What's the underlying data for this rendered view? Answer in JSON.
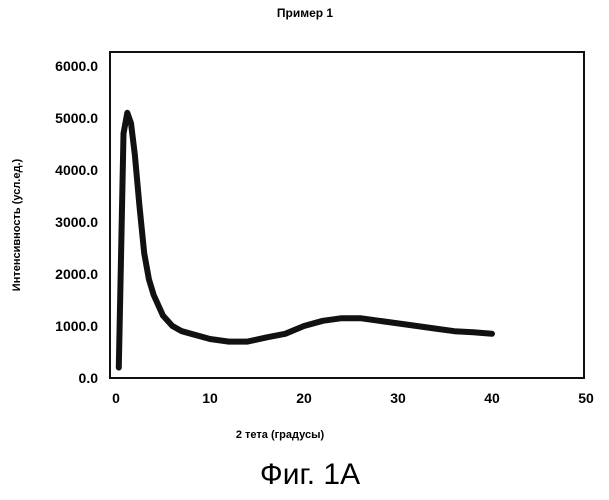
{
  "chart_data": {
    "type": "line",
    "title": "Пример 1",
    "xlabel": "2 тета (градусы)",
    "ylabel": "Интенсивность (усл.ед.)",
    "xlim": [
      0,
      50
    ],
    "ylim": [
      0,
      6000
    ],
    "x_ticks": [
      "0",
      "10",
      "20",
      "30",
      "40",
      "50"
    ],
    "y_ticks": [
      "0.0",
      "1000.0",
      "2000.0",
      "3000.0",
      "4000.0",
      "5000.0",
      "6000.0"
    ],
    "grid": false,
    "legend": "none",
    "line_color": "#111111",
    "series": [
      {
        "x": [
          0.3,
          0.8,
          1.2,
          1.6,
          2.0,
          2.5,
          3.0,
          3.5,
          4.0,
          5.0,
          6.0,
          7.0,
          8.0,
          10.0,
          12.0,
          14.0,
          16.0,
          18.0,
          20.0,
          22.0,
          24.0,
          26.0,
          28.0,
          30.0,
          32.0,
          34.0,
          36.0,
          38.0,
          40.0
        ],
        "y": [
          200,
          4700,
          5100,
          4900,
          4300,
          3300,
          2400,
          1900,
          1600,
          1200,
          1000,
          900,
          850,
          750,
          700,
          700,
          780,
          850,
          1000,
          1100,
          1150,
          1150,
          1100,
          1050,
          1000,
          950,
          900,
          880,
          850
        ]
      }
    ]
  },
  "caption": "Фиг. 1A"
}
